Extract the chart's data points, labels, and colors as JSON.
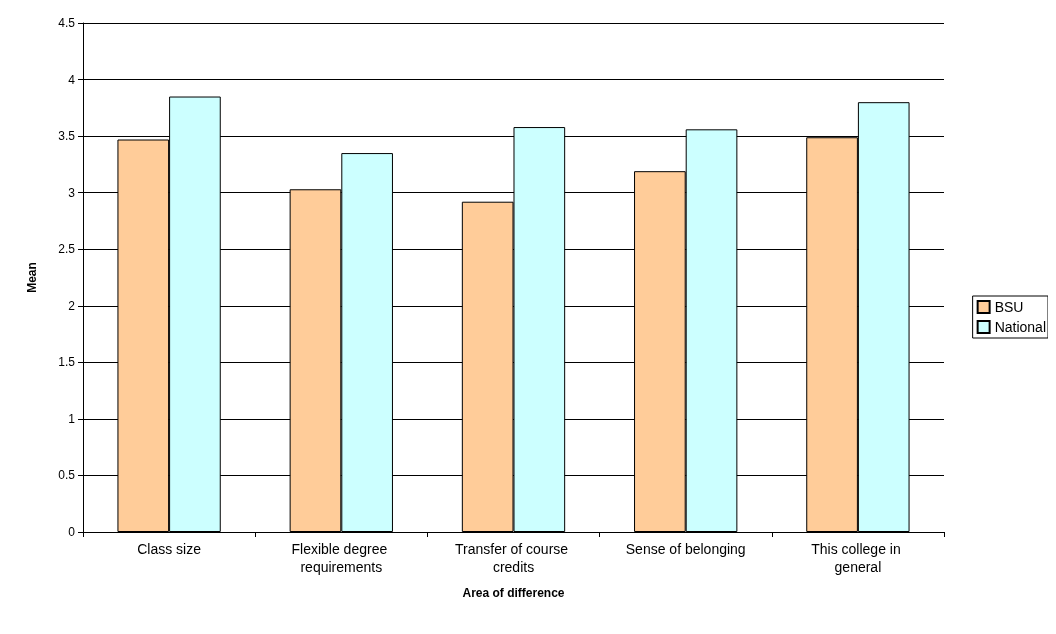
{
  "chart_data": {
    "type": "bar",
    "xlabel": "Area of difference",
    "ylabel": "Mean",
    "categories": [
      "Class size",
      "Flexible degree requirements",
      "Transfer of course credits",
      "Sense of belonging",
      "This college in general"
    ],
    "series": [
      {
        "name": "BSU",
        "color": "#ffcc99",
        "values": [
          3.47,
          3.03,
          2.92,
          3.19,
          3.49
        ]
      },
      {
        "name": "National",
        "color": "#ccffff",
        "values": [
          3.85,
          3.35,
          3.58,
          3.56,
          3.8
        ]
      }
    ],
    "ylim": [
      0,
      4.5
    ],
    "yticks": [
      0,
      0.5,
      1,
      1.5,
      2,
      2.5,
      3,
      3.5,
      4,
      4.5
    ],
    "grid": "y",
    "legend": "right"
  }
}
